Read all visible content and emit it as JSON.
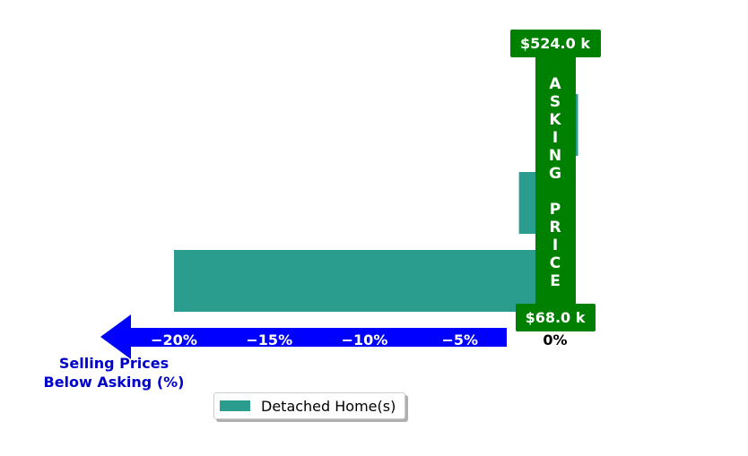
{
  "chart_data": {
    "type": "bar",
    "orientation": "horizontal",
    "series": [
      {
        "name": "Detached Home(s)",
        "color": "#2a9d8f",
        "values": [
          1.2,
          -1.9,
          -20.0
        ]
      }
    ],
    "x_ticks": [
      {
        "value": -20,
        "label": "−20%"
      },
      {
        "value": -15,
        "label": "−15%"
      },
      {
        "value": -10,
        "label": "−10%"
      },
      {
        "value": -5,
        "label": "−5%"
      },
      {
        "value": 0,
        "label": "0%"
      }
    ],
    "xlim": [
      -22,
      2
    ],
    "xlabel": "Selling Prices\nBelow Asking (%)",
    "xlabel_lines": [
      "Selling Prices",
      "Below Asking (%)"
    ],
    "asking_price": {
      "text": "ASKING PRICE",
      "top_label": "$524.0 k",
      "bottom_label": "$68.0 k",
      "color": "#008000"
    },
    "arrow_color": "#0000ff",
    "xlabel_color": "#0000cc",
    "legend": {
      "placement": "bottom-center",
      "entries": [
        "Detached Home(s)"
      ]
    },
    "grid": false
  }
}
